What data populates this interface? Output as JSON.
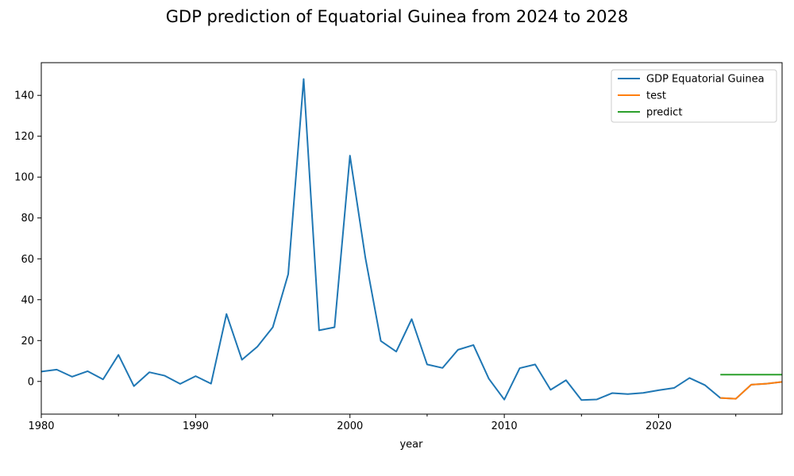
{
  "chart_data": {
    "type": "line",
    "title": "GDP prediction of Equatorial Guinea from 2024 to 2028",
    "xlabel": "year",
    "ylabel": "",
    "xlim": [
      1980,
      2028
    ],
    "ylim": [
      -16,
      156
    ],
    "x_ticks": [
      1980,
      1990,
      2000,
      2010,
      2020
    ],
    "y_ticks": [
      0,
      20,
      40,
      60,
      80,
      100,
      120,
      140
    ],
    "grid": false,
    "legend_position": "top-right",
    "series": [
      {
        "name": "GDP Equatorial Guinea",
        "color": "#1f77b4",
        "x": [
          1980,
          1981,
          1982,
          1983,
          1984,
          1985,
          1986,
          1987,
          1988,
          1989,
          1990,
          1991,
          1992,
          1993,
          1994,
          1995,
          1996,
          1997,
          1998,
          1999,
          2000,
          2001,
          2002,
          2003,
          2004,
          2005,
          2006,
          2007,
          2008,
          2009,
          2010,
          2011,
          2012,
          2013,
          2014,
          2015,
          2016,
          2017,
          2018,
          2019,
          2020,
          2021,
          2022,
          2023,
          2024,
          2025,
          2026,
          2027,
          2028
        ],
        "values": [
          4.8,
          5.8,
          2.3,
          5,
          1,
          13,
          -2.3,
          4.5,
          2.8,
          -1.2,
          2.6,
          -1.1,
          33,
          10.6,
          17,
          26.5,
          52.5,
          148,
          25,
          26.5,
          110.5,
          60.5,
          19.8,
          14.6,
          30.5,
          8.3,
          6.6,
          15.5,
          17.8,
          1.3,
          -8.9,
          6.5,
          8.3,
          -4.1,
          0.6,
          -9.1,
          -8.8,
          -5.7,
          -6.2,
          -5.6,
          -4.3,
          -3.2,
          1.7,
          -1.8,
          -8.1,
          -8.5,
          -1.6,
          -1.1,
          -0.2
        ]
      },
      {
        "name": "test",
        "color": "#ff7f0e",
        "x": [
          2024,
          2025,
          2026,
          2027,
          2028
        ],
        "values": [
          -8.1,
          -8.5,
          -1.6,
          -1.1,
          -0.2
        ]
      },
      {
        "name": "predict",
        "color": "#2ca02c",
        "x": [
          2024,
          2025,
          2026,
          2027,
          2028
        ],
        "values": [
          3.3,
          3.3,
          3.3,
          3.3,
          3.3
        ]
      }
    ]
  }
}
